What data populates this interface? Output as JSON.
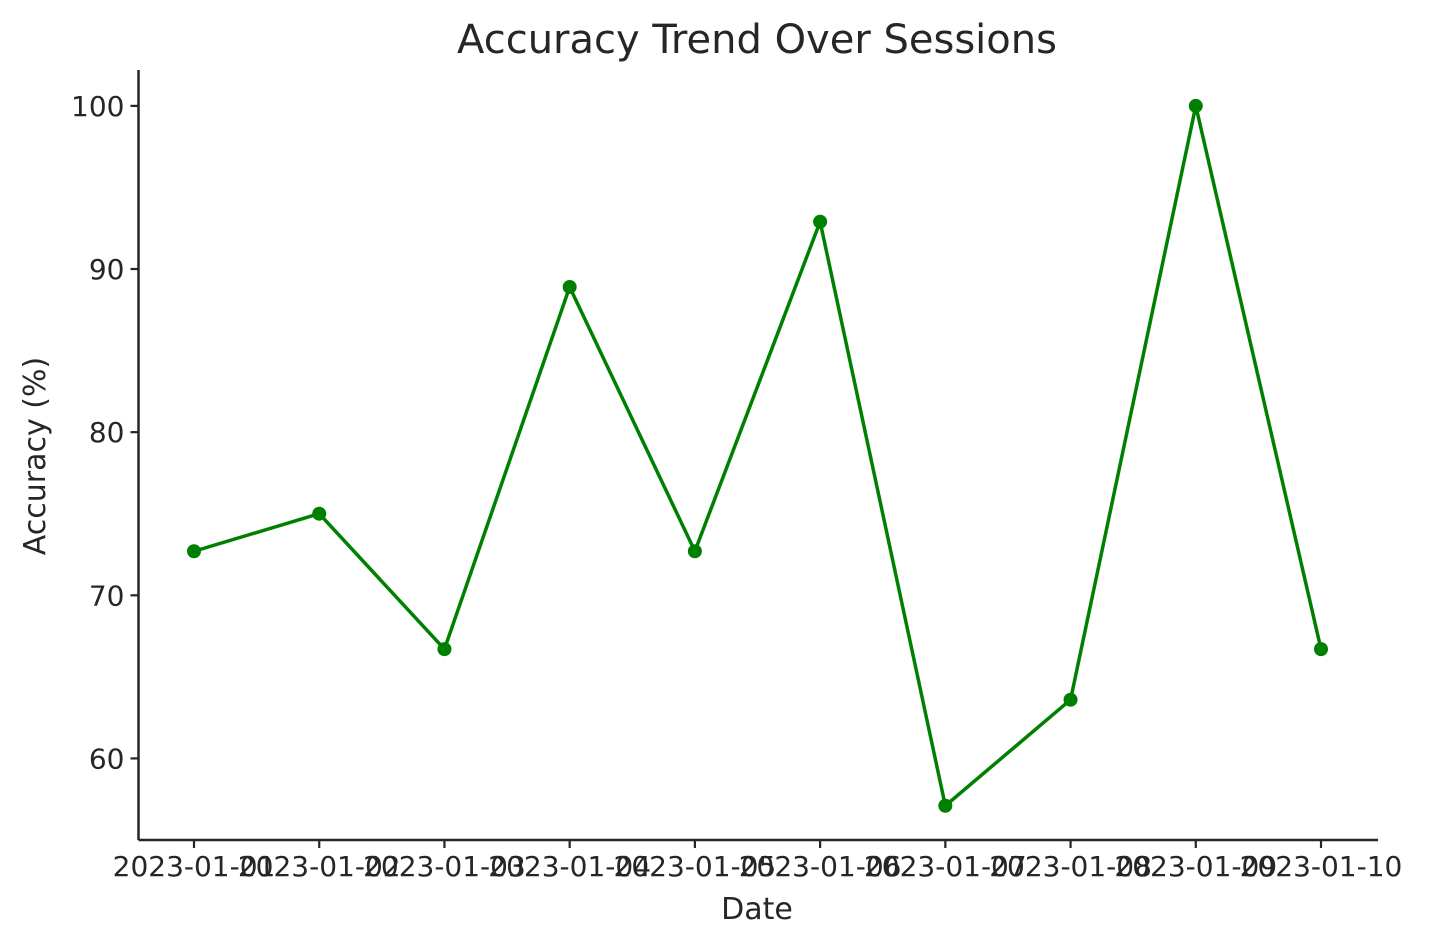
{
  "chart_data": {
    "type": "line",
    "title": "Accuracy Trend Over Sessions",
    "xlabel": "Date",
    "ylabel": "Accuracy (%)",
    "x": [
      "2023-01-01",
      "2023-01-02",
      "2023-01-03",
      "2023-01-04",
      "2023-01-05",
      "2023-01-06",
      "2023-01-07",
      "2023-01-08",
      "2023-01-09",
      "2023-01-10"
    ],
    "y": [
      72.7,
      75.0,
      66.7,
      88.9,
      72.7,
      92.9,
      57.1,
      63.6,
      100.0,
      66.7
    ],
    "yticks": [
      60,
      70,
      80,
      90,
      100
    ],
    "ylim": [
      55,
      102.2
    ],
    "grid": false,
    "marker": "circle",
    "colors": {
      "line": "#008000",
      "axis": "#262626",
      "text": "#262626"
    }
  }
}
